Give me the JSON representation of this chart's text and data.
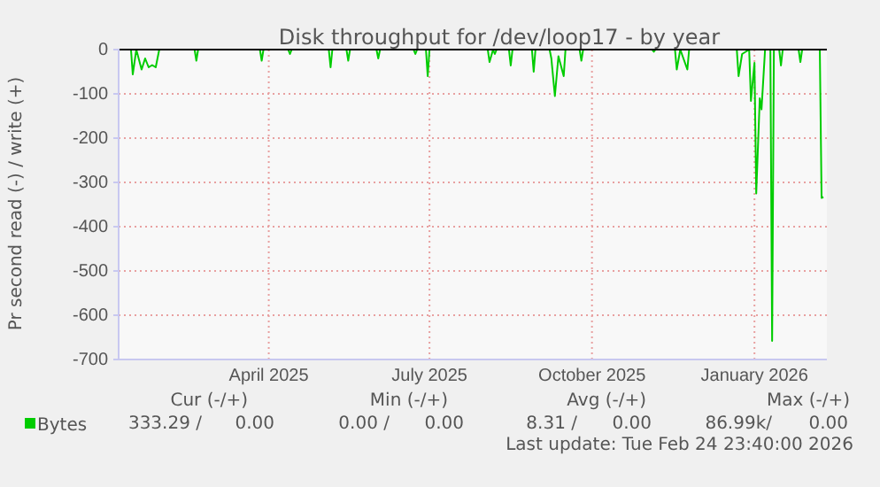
{
  "chart_data": {
    "type": "line",
    "title": "Disk throughput for /dev/loop17 - by year",
    "ylabel": "Pr second read (-) / write (+)",
    "x": [
      "2025-01-19",
      "2025-01-26",
      "2025-01-27",
      "2025-01-29",
      "2025-02-01",
      "2025-02-03",
      "2025-02-05",
      "2025-02-07",
      "2025-02-09",
      "2025-02-11",
      "2025-03-03",
      "2025-03-04",
      "2025-03-05",
      "2025-04-09",
      "2025-04-10",
      "2025-04-11",
      "2025-04-25",
      "2025-04-26",
      "2025-04-27",
      "2025-05-18",
      "2025-05-19",
      "2025-05-20",
      "2025-05-28",
      "2025-05-29",
      "2025-05-30",
      "2025-06-14",
      "2025-06-15",
      "2025-06-16",
      "2025-07-05",
      "2025-07-06",
      "2025-07-07",
      "2025-07-12",
      "2025-07-13",
      "2025-07-14",
      "2025-08-16",
      "2025-08-17",
      "2025-08-19",
      "2025-08-20",
      "2025-08-21",
      "2025-08-28",
      "2025-08-29",
      "2025-08-30",
      "2025-09-10",
      "2025-09-11",
      "2025-09-12",
      "2025-09-20",
      "2025-09-21",
      "2025-09-23",
      "2025-09-25",
      "2025-09-28",
      "2025-09-29",
      "2025-10-07",
      "2025-10-08",
      "2025-10-09",
      "2025-11-17",
      "2025-11-18",
      "2025-11-19",
      "2025-11-30",
      "2025-12-01",
      "2025-12-03",
      "2025-12-07",
      "2025-12-08",
      "2026-01-04",
      "2026-01-05",
      "2026-01-07",
      "2026-01-11",
      "2026-01-12",
      "2026-01-14",
      "2026-01-15",
      "2026-01-17",
      "2026-01-18",
      "2026-01-20",
      "2026-01-23",
      "2026-01-24",
      "2026-01-25",
      "2026-01-28",
      "2026-01-29",
      "2026-01-30",
      "2026-02-08",
      "2026-02-09",
      "2026-02-10",
      "2026-02-20",
      "2026-02-21",
      "2026-02-22"
    ],
    "series": [
      {
        "name": "Bytes",
        "color": "#00cc00",
        "values": [
          0,
          0,
          -56,
          0,
          -45,
          -20,
          -40,
          -35,
          -40,
          0,
          0,
          -25,
          0,
          0,
          -25,
          0,
          0,
          -10,
          0,
          0,
          -40,
          0,
          0,
          -25,
          0,
          0,
          -20,
          0,
          0,
          -10,
          0,
          0,
          -60,
          0,
          0,
          -28,
          0,
          -10,
          0,
          0,
          -36,
          0,
          0,
          -50,
          0,
          0,
          -20,
          -105,
          -15,
          -60,
          0,
          0,
          -25,
          0,
          0,
          -5,
          0,
          0,
          -45,
          0,
          -45,
          0,
          0,
          -60,
          -10,
          0,
          -116,
          -30,
          -325,
          -110,
          -135,
          0,
          0,
          -658,
          0,
          0,
          -36,
          0,
          0,
          -28,
          0,
          0,
          -335,
          -333
        ]
      }
    ],
    "xlim": [
      "2025-01-19",
      "2026-02-24"
    ],
    "xticks": [
      {
        "value": "2025-04-14",
        "label": "April 2025"
      },
      {
        "value": "2025-07-14",
        "label": "July 2025"
      },
      {
        "value": "2025-10-14",
        "label": "October 2025"
      },
      {
        "value": "2026-01-14",
        "label": "January 2026"
      }
    ],
    "ylim": [
      -700,
      0
    ],
    "yticks": [
      -700,
      -600,
      -500,
      -400,
      -300,
      -200,
      -100,
      0
    ],
    "grid": true,
    "legend": "bottom",
    "annotations": [
      "Cur (-/+)",
      "Min (-/+)",
      "Avg (-/+)",
      "Max (-/+)",
      "333.29 /",
      "0.00",
      "0.00 /",
      "0.00",
      "8.31 /",
      "0.00",
      "86.99k/",
      "0.00",
      "Last update: Tue Feb 24 23:40:00 2026"
    ]
  }
}
